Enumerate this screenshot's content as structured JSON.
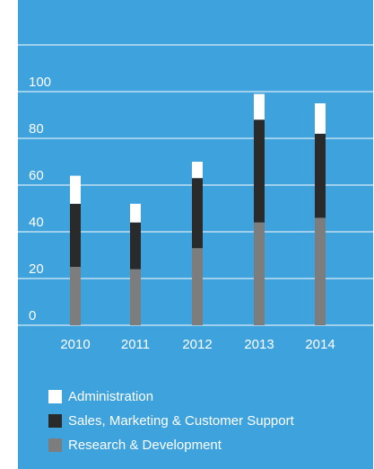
{
  "colors": {
    "background": "#3ea2dc",
    "gridline": "#ffffff"
  },
  "chart_data": {
    "type": "bar",
    "stacked": true,
    "categories": [
      "2010",
      "2011",
      "2012",
      "2013",
      "2014"
    ],
    "yticks": [
      "0",
      "20",
      "40",
      "60",
      "80",
      "100"
    ],
    "ylim": [
      0,
      120
    ],
    "grid": true,
    "legend_position": "bottom",
    "series": [
      {
        "name": "Research & Development",
        "color": "#7d7d7d",
        "values": [
          25,
          24,
          33,
          44,
          46
        ]
      },
      {
        "name": "Sales, Marketing & Customer Support",
        "color": "#2a2a2a",
        "values": [
          27,
          20,
          30,
          44,
          36
        ]
      },
      {
        "name": "Administration",
        "color": "#ffffff",
        "values": [
          12,
          8,
          7,
          11,
          13
        ]
      }
    ]
  }
}
